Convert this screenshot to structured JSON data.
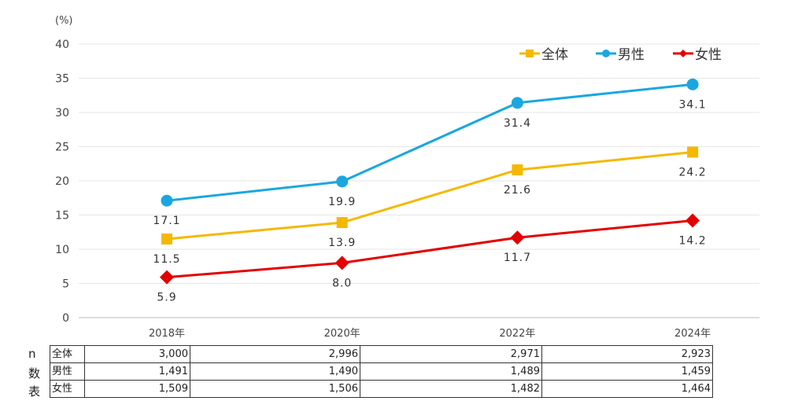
{
  "chart_data": {
    "type": "line",
    "ylabel": "(%)",
    "ylim": [
      0,
      40
    ],
    "yticks": [
      "0",
      "5",
      "10",
      "15",
      "20",
      "25",
      "30",
      "35",
      "40"
    ],
    "categories": [
      "2018年",
      "2020年",
      "2022年",
      "2024年"
    ],
    "grid": true,
    "legend": "top-right",
    "series": [
      {
        "name": "全体",
        "values": [
          11.5,
          13.9,
          21.6,
          24.2
        ],
        "labels": [
          "11.5",
          "13.9",
          "21.6",
          "24.2"
        ],
        "color": "#f5b800",
        "marker": "square"
      },
      {
        "name": "男性",
        "values": [
          17.1,
          19.9,
          31.4,
          34.1
        ],
        "labels": [
          "17.1",
          "19.9",
          "31.4",
          "34.1"
        ],
        "color": "#1aa7e0",
        "marker": "circle"
      },
      {
        "name": "女性",
        "values": [
          5.9,
          8.0,
          11.7,
          14.2
        ],
        "labels": [
          "5.9",
          "8.0",
          "11.7",
          "14.2"
        ],
        "color": "#e30000",
        "marker": "diamond"
      }
    ]
  },
  "table": {
    "side_label": [
      "n",
      "数",
      "表"
    ],
    "rows": [
      {
        "label": "全体",
        "values": [
          "3,000",
          "2,996",
          "2,971",
          "2,923"
        ]
      },
      {
        "label": "男性",
        "values": [
          "1,491",
          "1,490",
          "1,489",
          "1,459"
        ]
      },
      {
        "label": "女性",
        "values": [
          "1,509",
          "1,506",
          "1,482",
          "1,464"
        ]
      }
    ]
  }
}
